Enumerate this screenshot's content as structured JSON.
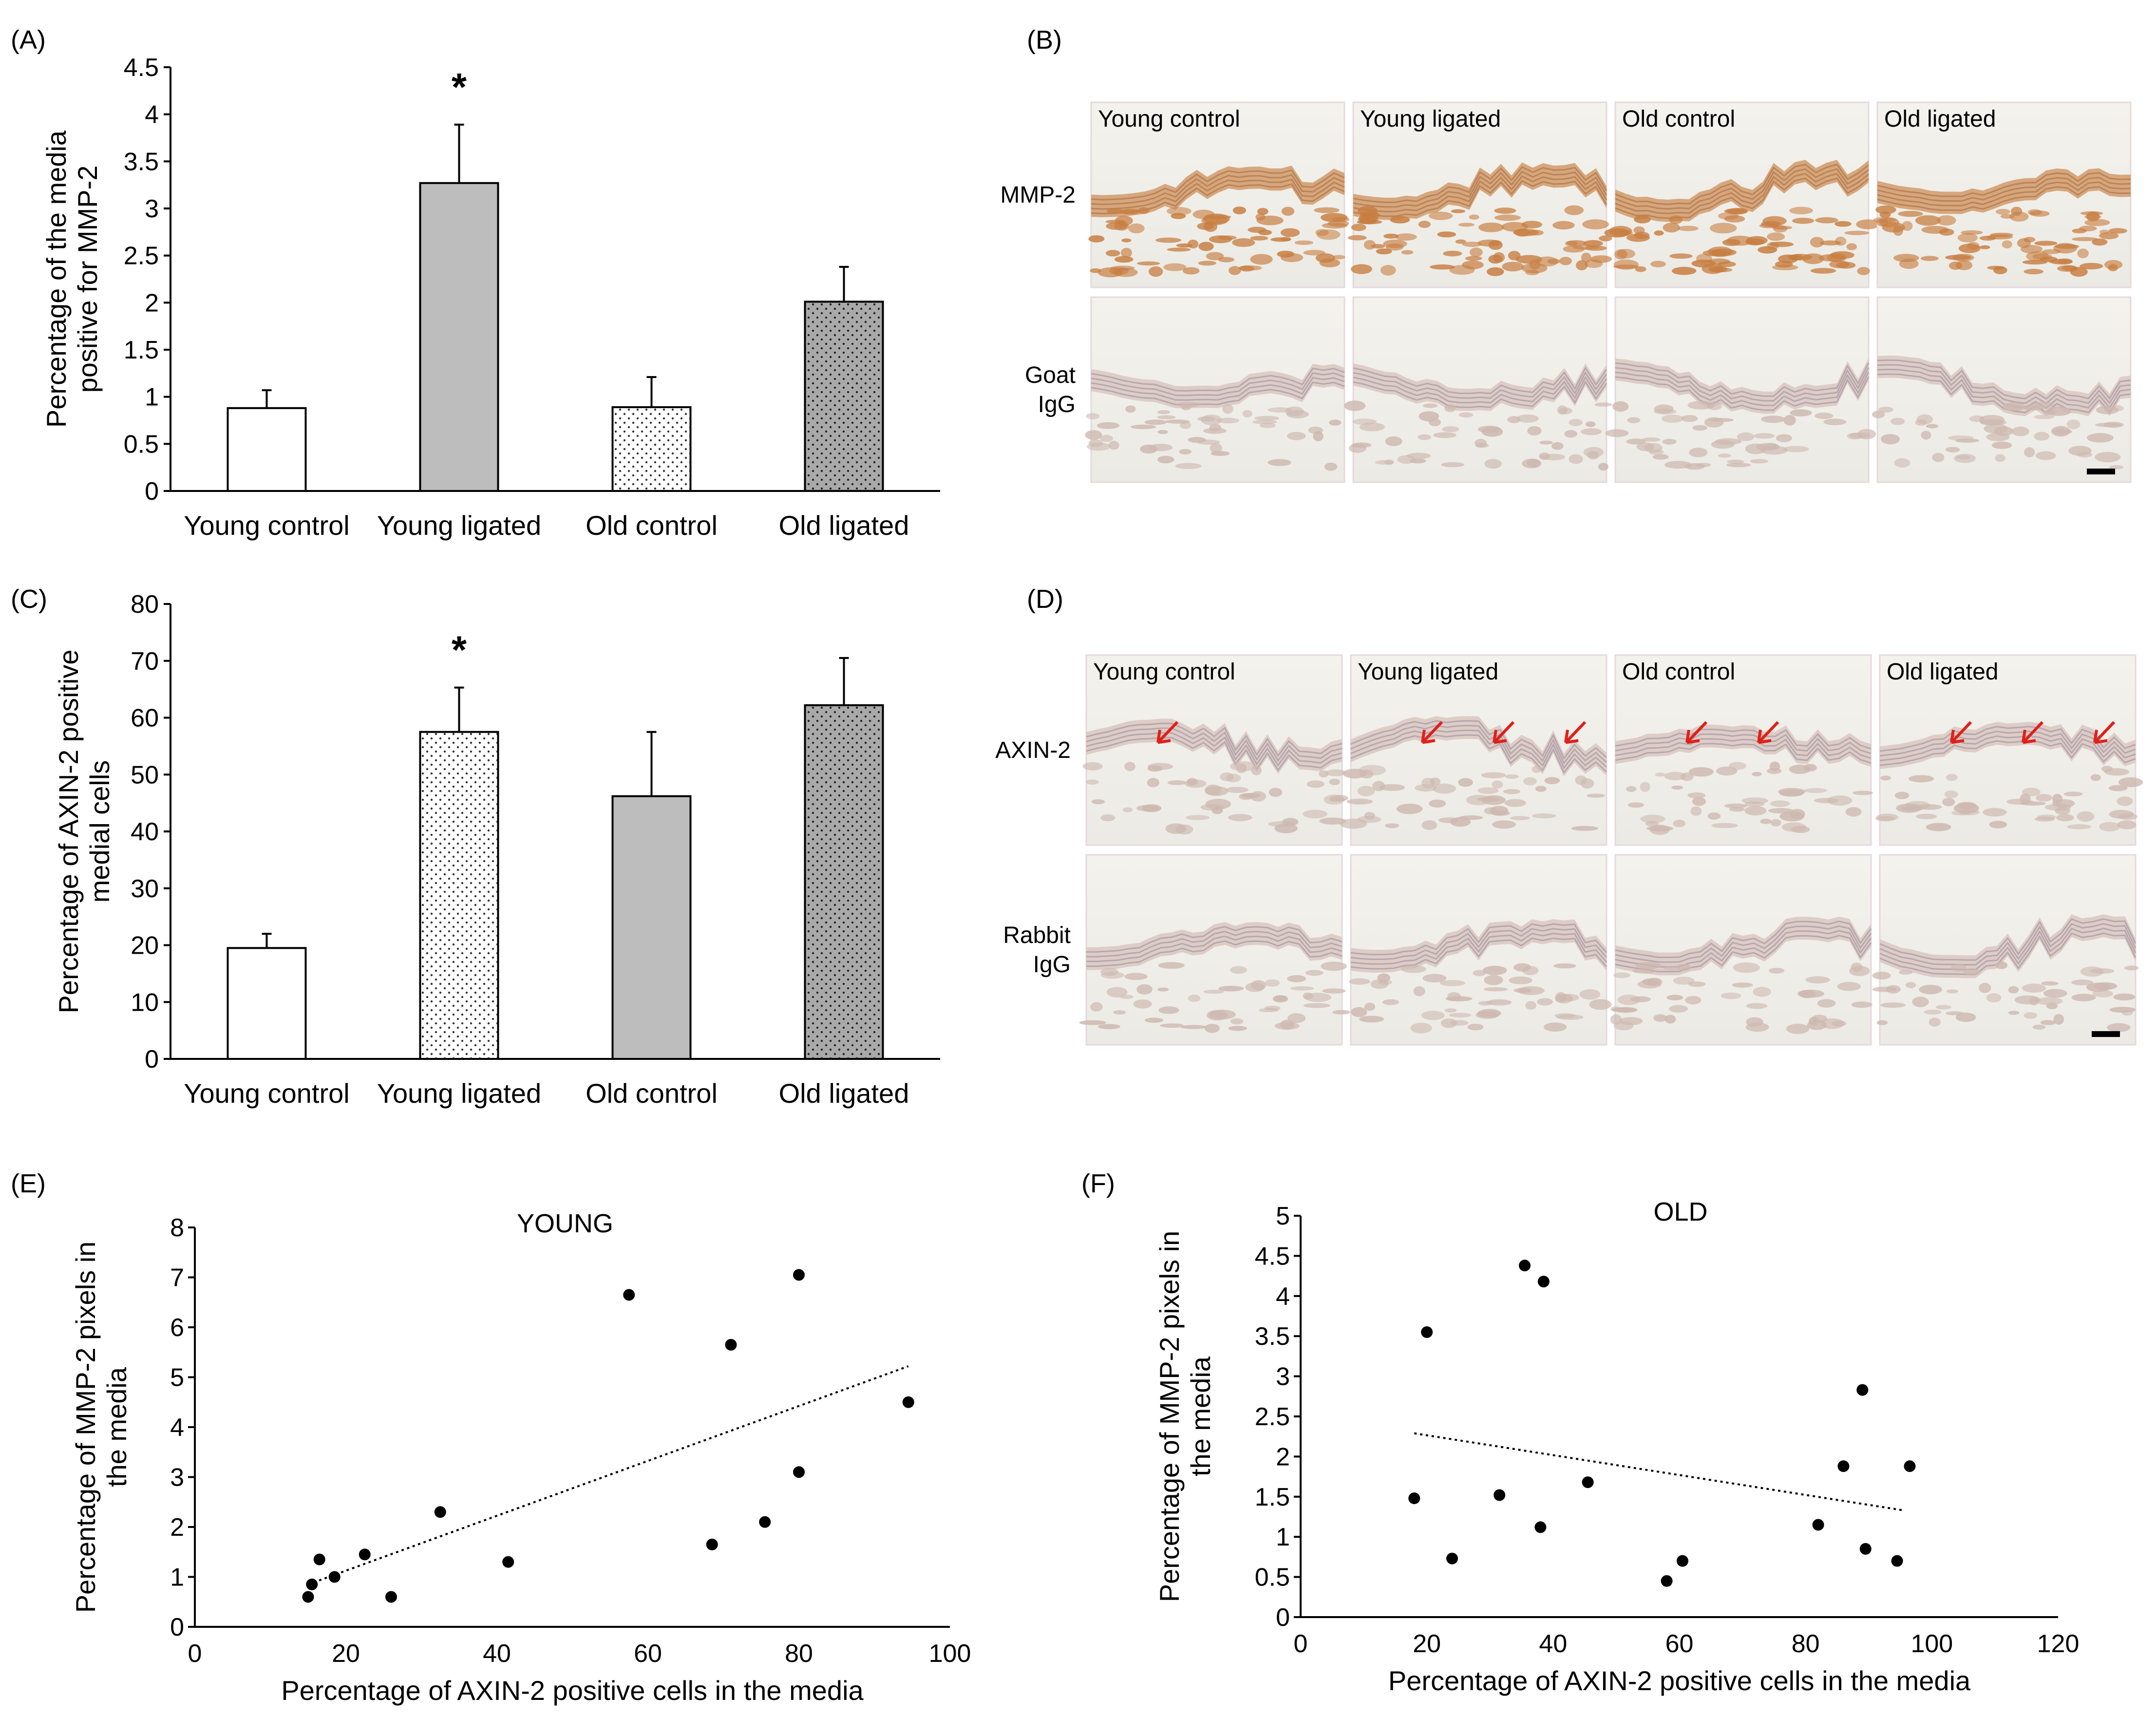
{
  "panels": {
    "A": "(A)",
    "B": "(B)",
    "C": "(C)",
    "D": "(D)",
    "E": "(E)",
    "F": "(F)"
  },
  "colors": {
    "bar_gray": "#bdbdbd",
    "dark_gray": "#a8a8a8",
    "stain_brown": "#c98a52",
    "arrow_red": "#e0201b"
  },
  "chart_data": [
    {
      "id": "A",
      "type": "bar",
      "title": "",
      "categories": [
        "Young control",
        "Young ligated",
        "Old control",
        "Old ligated"
      ],
      "values": [
        0.88,
        3.27,
        0.89,
        2.01
      ],
      "errors": [
        0.19,
        0.62,
        0.32,
        0.37
      ],
      "fills": [
        "white",
        "gray",
        "dots",
        "darkdots"
      ],
      "significance": [
        "",
        "*",
        "",
        ""
      ],
      "ylabel": [
        "Percentage of the media",
        "positive for MMP-2"
      ],
      "xlabel": "",
      "ylim": [
        0,
        4.5
      ],
      "yticks": [
        "0",
        "0.5",
        "1",
        "1.5",
        "2",
        "2.5",
        "3",
        "3.5",
        "4",
        "4.5"
      ]
    },
    {
      "id": "C",
      "type": "bar",
      "title": "",
      "categories": [
        "Young control",
        "Young ligated",
        "Old control",
        "Old ligated"
      ],
      "values": [
        19.5,
        57.5,
        46.2,
        62.2
      ],
      "errors": [
        2.5,
        7.8,
        11.3,
        8.3
      ],
      "fills": [
        "white",
        "dots",
        "gray",
        "darkdots"
      ],
      "significance": [
        "",
        "*",
        "",
        ""
      ],
      "ylabel": [
        "Percentage of AXIN-2 positive",
        "medial cells"
      ],
      "xlabel": "",
      "ylim": [
        0,
        80
      ],
      "yticks": [
        "0",
        "10",
        "20",
        "30",
        "40",
        "50",
        "60",
        "70",
        "80"
      ]
    },
    {
      "id": "E",
      "type": "scatter",
      "title": "YOUNG",
      "x": [
        15,
        15.5,
        16.5,
        18.5,
        22.5,
        26,
        32.5,
        41.5,
        57.5,
        68.5,
        71,
        75.5,
        80,
        80,
        94.5
      ],
      "y": [
        0.6,
        0.85,
        1.35,
        1.0,
        1.45,
        0.6,
        2.3,
        1.3,
        6.65,
        1.65,
        5.65,
        2.1,
        3.1,
        7.05,
        4.5
      ],
      "trendline": {
        "x": [
          15,
          94.5
        ],
        "y": [
          0.85,
          5.22
        ]
      },
      "xlabel": "Percentage of AXIN-2 positive cells in the media",
      "ylabel": [
        "Percentage of MMP-2 pixels in",
        "the media"
      ],
      "xlim": [
        0,
        100
      ],
      "ylim": [
        0,
        8
      ],
      "xticks": [
        "0",
        "20",
        "40",
        "60",
        "80",
        "100"
      ],
      "yticks": [
        "0",
        "1",
        "2",
        "3",
        "4",
        "5",
        "6",
        "7",
        "8"
      ]
    },
    {
      "id": "F",
      "type": "scatter",
      "title": "OLD",
      "x": [
        18,
        20,
        24,
        31.5,
        35.5,
        38,
        38.5,
        45.5,
        58,
        60.5,
        82,
        86,
        89,
        89.5,
        94.5,
        96.5
      ],
      "y": [
        1.48,
        3.55,
        0.73,
        1.52,
        4.38,
        1.12,
        4.18,
        1.68,
        0.45,
        0.7,
        1.15,
        1.88,
        2.83,
        0.85,
        0.7,
        1.88
      ],
      "trendline": {
        "x": [
          18,
          95.5
        ],
        "y": [
          2.29,
          1.33
        ]
      },
      "xlabel": "Percentage of AXIN-2 positive cells in the media",
      "ylabel": [
        "Percentage of MMP-2 pixels in",
        "the media"
      ],
      "xlim": [
        0,
        120
      ],
      "ylim": [
        0,
        5
      ],
      "xticks": [
        "0",
        "20",
        "40",
        "60",
        "80",
        "100",
        "120"
      ],
      "yticks": [
        "0",
        "0.5",
        "1",
        "1.5",
        "2",
        "2.5",
        "3",
        "3.5",
        "4",
        "4.5",
        "5"
      ]
    }
  ],
  "micrographs": {
    "B": {
      "columns": [
        "Young control",
        "Young ligated",
        "Old control",
        "Old ligated"
      ],
      "rows": [
        {
          "label": [
            "MMP-2"
          ],
          "stain": "strong"
        },
        {
          "label": [
            "Goat",
            "IgG"
          ],
          "stain": "weak"
        }
      ]
    },
    "D": {
      "columns": [
        "Young control",
        "Young ligated",
        "Old control",
        "Old ligated"
      ],
      "rows": [
        {
          "label": [
            "AXIN-2"
          ],
          "stain": "arrows",
          "arrows": [
            1,
            3,
            2,
            3
          ]
        },
        {
          "label": [
            "Rabbit",
            "IgG"
          ],
          "stain": "weak"
        }
      ]
    }
  }
}
